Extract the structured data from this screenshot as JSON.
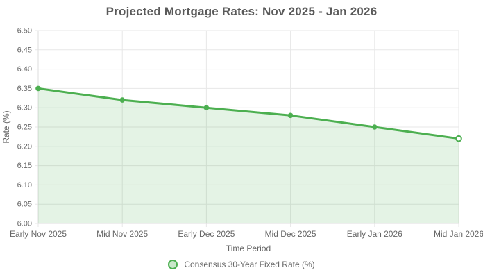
{
  "title": "Projected Mortgage Rates: Nov 2025 - Jan 2026",
  "legend": {
    "label": "Consensus 30-Year Fixed Rate (%)"
  },
  "chart_data": {
    "type": "area",
    "title": "Projected Mortgage Rates: Nov 2025 - Jan 2026",
    "categories": [
      "Early Nov 2025",
      "Mid Nov 2025",
      "Early Dec 2025",
      "Mid Dec 2025",
      "Early Jan 2026",
      "Mid Jan 2026"
    ],
    "series": [
      {
        "name": "Consensus 30-Year Fixed Rate (%)",
        "values": [
          6.35,
          6.32,
          6.3,
          6.28,
          6.25,
          6.22
        ]
      }
    ],
    "xlabel": "Time Period",
    "ylabel": "Rate (%)",
    "ylim": [
      6.0,
      6.5
    ],
    "ytick_step": 0.05,
    "ytick_decimals": 2,
    "grid": true,
    "legend_position": "bottom",
    "colors": {
      "line": "#4CAF50",
      "point": "#4CAF50",
      "last_point_fill": "#ffffff",
      "area_fill": "rgba(76,175,80,0.15)",
      "grid": "#e7e7e7",
      "axis_line": "#dedede",
      "tick_label": "#666666",
      "axis_title": "#666666",
      "title": "#5a5a5a",
      "legend_marker_fill": "rgba(76,175,80,0.3)",
      "legend_text": "#666666"
    }
  }
}
